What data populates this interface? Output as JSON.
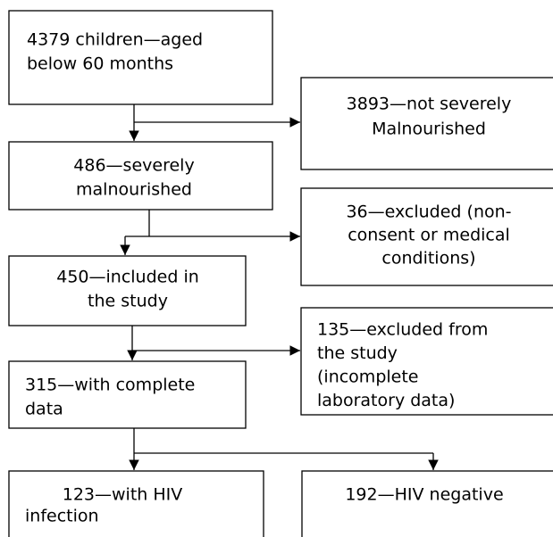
{
  "nodes": [
    {
      "lines": [
        "4379 children—aged",
        "below 60 months"
      ]
    },
    {
      "lines": [
        "3893—not severely",
        "Malnourished"
      ]
    },
    {
      "lines": [
        "486—severely",
        "malnourished"
      ]
    },
    {
      "lines": [
        "36—excluded (non-",
        "consent or medical",
        "conditions)"
      ]
    },
    {
      "lines": [
        "450—included in",
        "the study"
      ]
    },
    {
      "lines": [
        "135—excluded from",
        "the study",
        "(incomplete",
        "laboratory data)"
      ]
    },
    {
      "lines": [
        "315—with complete",
        "data"
      ]
    },
    {
      "lines": [
        "123—with HIV",
        "infection"
      ]
    },
    {
      "lines": [
        "192—HIV negative"
      ]
    }
  ]
}
